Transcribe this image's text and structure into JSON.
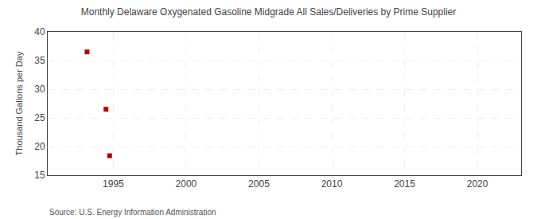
{
  "chart_data": {
    "type": "scatter",
    "title": "Monthly Delaware Oxygenated Gasoline Midgrade All Sales/Deliveries by Prime Supplier",
    "y_label": "Thousand Gallons per Day",
    "annotations": [
      {
        "text": "Source: U.S. Energy Information Administration"
      }
    ],
    "x": [
      1993.2,
      1994.5,
      1994.75
    ],
    "values": [
      36.5,
      26.5,
      18.4
    ],
    "color": "#bb0000",
    "marker": "square",
    "xlim": [
      1990.5,
      2023
    ],
    "xticks": [
      1995,
      2000,
      2005,
      2010,
      2015,
      2020
    ],
    "ylim": [
      15,
      40
    ],
    "yticks": [
      15,
      20,
      25,
      30,
      35,
      40
    ],
    "grid": true
  }
}
